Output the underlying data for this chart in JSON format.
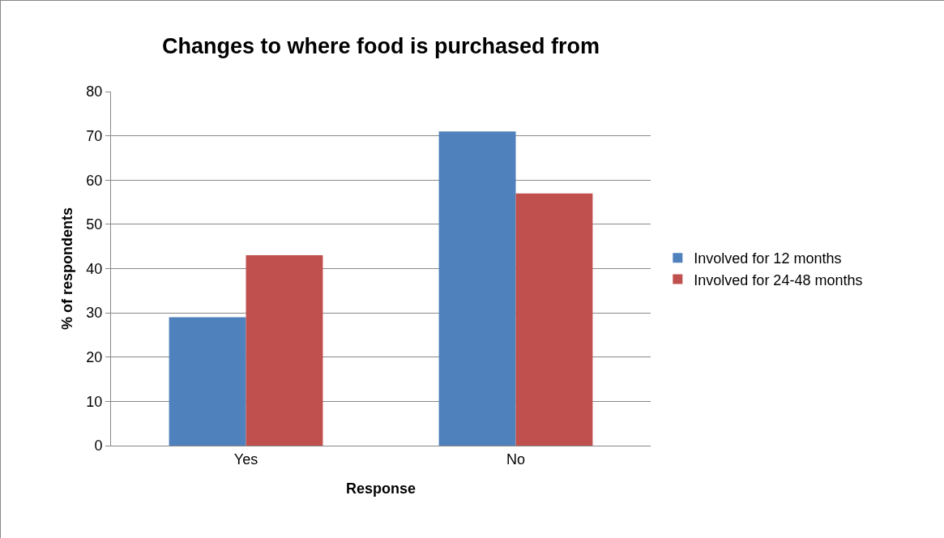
{
  "chart_data": {
    "type": "bar",
    "title": "Changes to where food is purchased from",
    "xlabel": "Response",
    "ylabel": "% of respondents",
    "categories": [
      "Yes",
      "No"
    ],
    "series": [
      {
        "name": "Involved for 12 months",
        "color": "#4f81bd",
        "values": [
          29,
          71
        ]
      },
      {
        "name": "Involved for 24-48 months",
        "color": "#c0504d",
        "values": [
          43,
          57
        ]
      }
    ],
    "ylim": [
      0,
      80
    ],
    "yticks": [
      0,
      10,
      20,
      30,
      40,
      50,
      60,
      70,
      80
    ],
    "grid": "y",
    "legend": "right"
  }
}
